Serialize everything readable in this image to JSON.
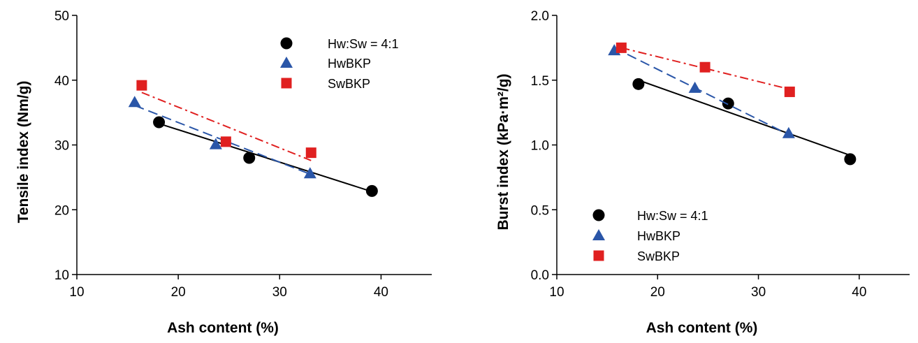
{
  "chart_data": [
    {
      "type": "scatter",
      "xlabel": "Ash content (%)",
      "ylabel": "Tensile index (Nm/g)",
      "xlim": [
        10,
        45
      ],
      "ylim": [
        10,
        50
      ],
      "xticks": [
        10,
        20,
        30,
        40
      ],
      "yticks": [
        10,
        20,
        30,
        40,
        50
      ],
      "legend_position": "top-right",
      "grid": false,
      "series": [
        {
          "name": "Hw:Sw = 4:1",
          "marker": "circle",
          "color": "#000000",
          "line_style": "solid",
          "x": [
            18.1,
            27.0,
            39.1
          ],
          "y": [
            33.5,
            28.0,
            22.9
          ],
          "trend": [
            [
              18.1,
              33.3
            ],
            [
              39.1,
              22.8
            ]
          ]
        },
        {
          "name": "HwBKP",
          "marker": "triangle",
          "color": "#2a56a8",
          "line_style": "dashed",
          "x": [
            15.7,
            23.7,
            33.0
          ],
          "y": [
            36.6,
            30.1,
            25.6
          ],
          "trend": [
            [
              15.7,
              36.1
            ],
            [
              33.0,
              25.5
            ]
          ]
        },
        {
          "name": "SwBKP",
          "marker": "square",
          "color": "#e02020",
          "line_style": "dashdot",
          "x": [
            16.4,
            24.7,
            33.1
          ],
          "y": [
            39.2,
            30.5,
            28.8
          ],
          "trend": [
            [
              16.4,
              38.1
            ],
            [
              33.1,
              27.6
            ]
          ]
        }
      ]
    },
    {
      "type": "scatter",
      "xlabel": "Ash content (%)",
      "ylabel": "Burst index (kPa·m²/g)",
      "xlim": [
        10,
        45
      ],
      "ylim": [
        0.0,
        2.0
      ],
      "xticks": [
        10,
        20,
        30,
        40
      ],
      "yticks": [
        0.0,
        0.5,
        1.0,
        1.5,
        2.0
      ],
      "ytick_labels": [
        "0.0",
        "0.5",
        "1.0",
        "1.5",
        "2.0"
      ],
      "legend_position": "bottom-left",
      "grid": false,
      "series": [
        {
          "name": "Hw:Sw = 4:1",
          "marker": "circle",
          "color": "#000000",
          "line_style": "solid",
          "x": [
            18.1,
            27.0,
            39.1
          ],
          "y": [
            1.47,
            1.32,
            0.89
          ],
          "trend": [
            [
              18.1,
              1.5
            ],
            [
              39.1,
              0.92
            ]
          ]
        },
        {
          "name": "HwBKP",
          "marker": "triangle",
          "color": "#2a56a8",
          "line_style": "dashed",
          "x": [
            15.7,
            23.7,
            33.0
          ],
          "y": [
            1.73,
            1.44,
            1.09
          ],
          "trend": [
            [
              15.7,
              1.75
            ],
            [
              33.0,
              1.08
            ]
          ]
        },
        {
          "name": "SwBKP",
          "marker": "square",
          "color": "#e02020",
          "line_style": "dashdot",
          "x": [
            16.4,
            24.7,
            33.1
          ],
          "y": [
            1.75,
            1.6,
            1.41
          ],
          "trend": [
            [
              16.4,
              1.75
            ],
            [
              33.1,
              1.43
            ]
          ]
        }
      ]
    }
  ]
}
